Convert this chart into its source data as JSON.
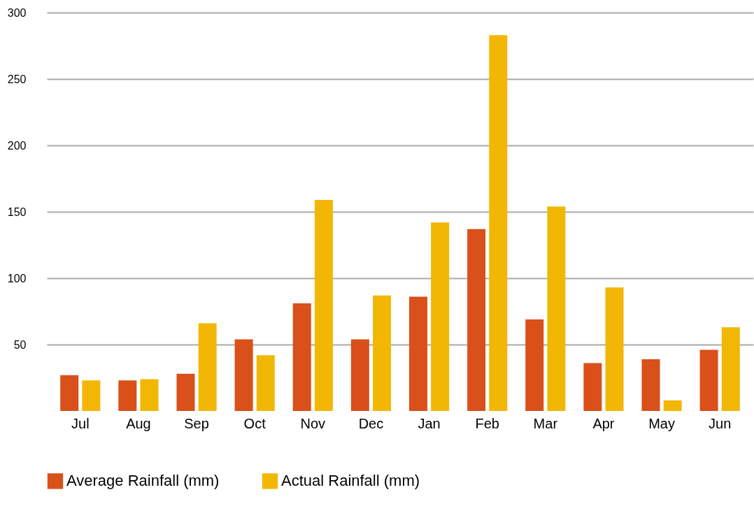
{
  "chart_data": {
    "type": "bar",
    "categories": [
      "Jul",
      "Aug",
      "Sep",
      "Oct",
      "Nov",
      "Dec",
      "Jan",
      "Feb",
      "Mar",
      "Apr",
      "May",
      "Jun"
    ],
    "series": [
      {
        "name": "Average Rainfall (mm)",
        "color": "#d9501a",
        "values": [
          27,
          23,
          28,
          54,
          81,
          54,
          86,
          137,
          69,
          36,
          39,
          46
        ]
      },
      {
        "name": "Actual Rainfall (mm)",
        "color": "#f2b705",
        "values": [
          23,
          24,
          66,
          42,
          159,
          87,
          142,
          283,
          154,
          93,
          8,
          63
        ]
      }
    ],
    "ylim": [
      0,
      300
    ],
    "yticks": [
      50,
      100,
      150,
      200,
      250,
      300
    ],
    "grid": "y",
    "legend": "bottom"
  }
}
